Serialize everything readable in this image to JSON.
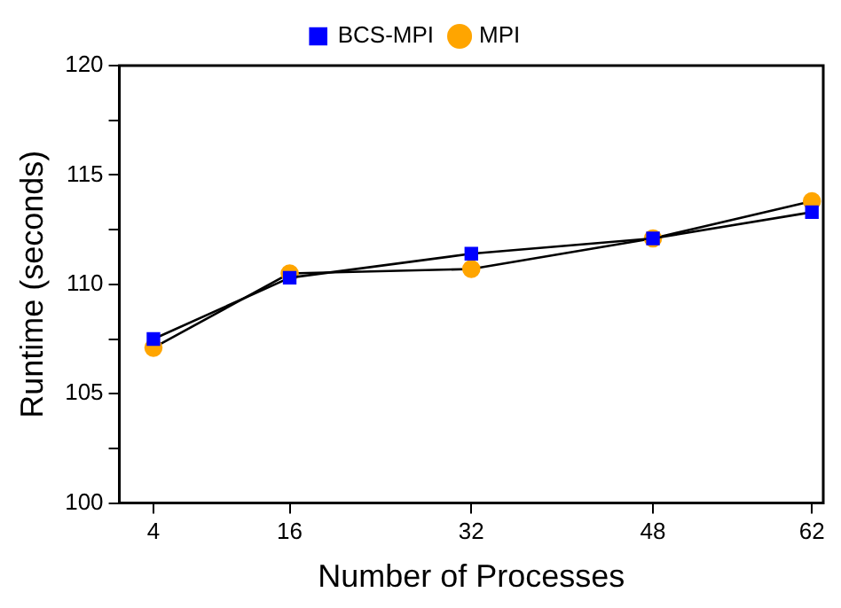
{
  "chart_data": {
    "type": "line",
    "xlabel": "Number of Processes",
    "ylabel": "Runtime (seconds)",
    "x": [
      4,
      16,
      32,
      48,
      62
    ],
    "series": [
      {
        "name": "MPI",
        "color": "#ffa500",
        "marker": "circle",
        "values": [
          107.1,
          110.5,
          110.7,
          112.1,
          113.8
        ]
      },
      {
        "name": "BCS-MPI",
        "color": "#0000ff",
        "marker": "square",
        "values": [
          107.5,
          110.3,
          111.4,
          112.1,
          113.3
        ]
      }
    ],
    "xlim": [
      1,
      63
    ],
    "xticks": [
      4,
      16,
      32,
      48,
      62
    ],
    "ylim": [
      100,
      120
    ],
    "yticks": [
      100,
      {
        "value": 102.5,
        "label": null
      },
      105,
      {
        "value": 107.5,
        "label": null
      },
      110,
      {
        "value": 112.5,
        "label": null
      },
      115,
      {
        "value": 117.5,
        "label": null
      },
      120
    ],
    "grid": false,
    "legend": "top"
  }
}
